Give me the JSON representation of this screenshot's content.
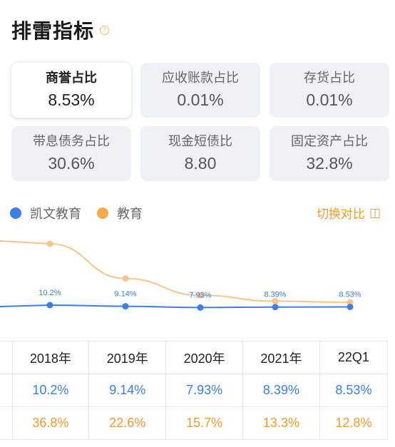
{
  "header": {
    "title": "排雷指标",
    "help_icon": "question-circle-icon",
    "help_glyph": "?"
  },
  "cards": [
    {
      "label": "商誉占比",
      "value": "8.53%",
      "active": true
    },
    {
      "label": "应收账款占比",
      "value": "0.01%",
      "active": false
    },
    {
      "label": "存货占比",
      "value": "0.01%",
      "active": false
    },
    {
      "label": "带息债务占比",
      "value": "30.6%",
      "active": false
    },
    {
      "label": "现金短债比",
      "value": "8.80",
      "active": false
    },
    {
      "label": "固定资产占比",
      "value": "32.8%",
      "active": false
    }
  ],
  "legend": [
    {
      "name": "凯文教育",
      "color": "#3b7ee8"
    },
    {
      "name": "教育",
      "color": "#f8a94a"
    }
  ],
  "switch": {
    "label": "切换对比",
    "icon": "compare-toggle-icon",
    "glyph": "◫"
  },
  "chart_data": {
    "type": "line",
    "categories": [
      "2018年",
      "2019年",
      "2020年",
      "2021年",
      "22Q1"
    ],
    "series": [
      {
        "name": "凯文教育",
        "color": "#3b7ee8",
        "values": [
          10.2,
          9.14,
          7.93,
          8.39,
          8.53
        ],
        "labels": [
          "10.2%",
          "9.14%",
          "7.93%",
          "8.39%",
          "8.53%"
        ]
      },
      {
        "name": "教育",
        "color": "#f8c48c",
        "values": [
          36.8,
          22.6,
          15.7,
          13.3,
          12.8
        ]
      }
    ],
    "grid": false
  },
  "table": {
    "header": [
      "2018年",
      "2019年",
      "2020年",
      "2021年",
      "22Q1"
    ],
    "rows": [
      {
        "series": "凯文教育",
        "cells": [
          "10.2%",
          "9.14%",
          "7.93%",
          "8.39%",
          "8.53%"
        ]
      },
      {
        "series": "教育",
        "cells": [
          "36.8%",
          "22.6%",
          "15.7%",
          "13.3%",
          "12.8%"
        ]
      }
    ]
  }
}
